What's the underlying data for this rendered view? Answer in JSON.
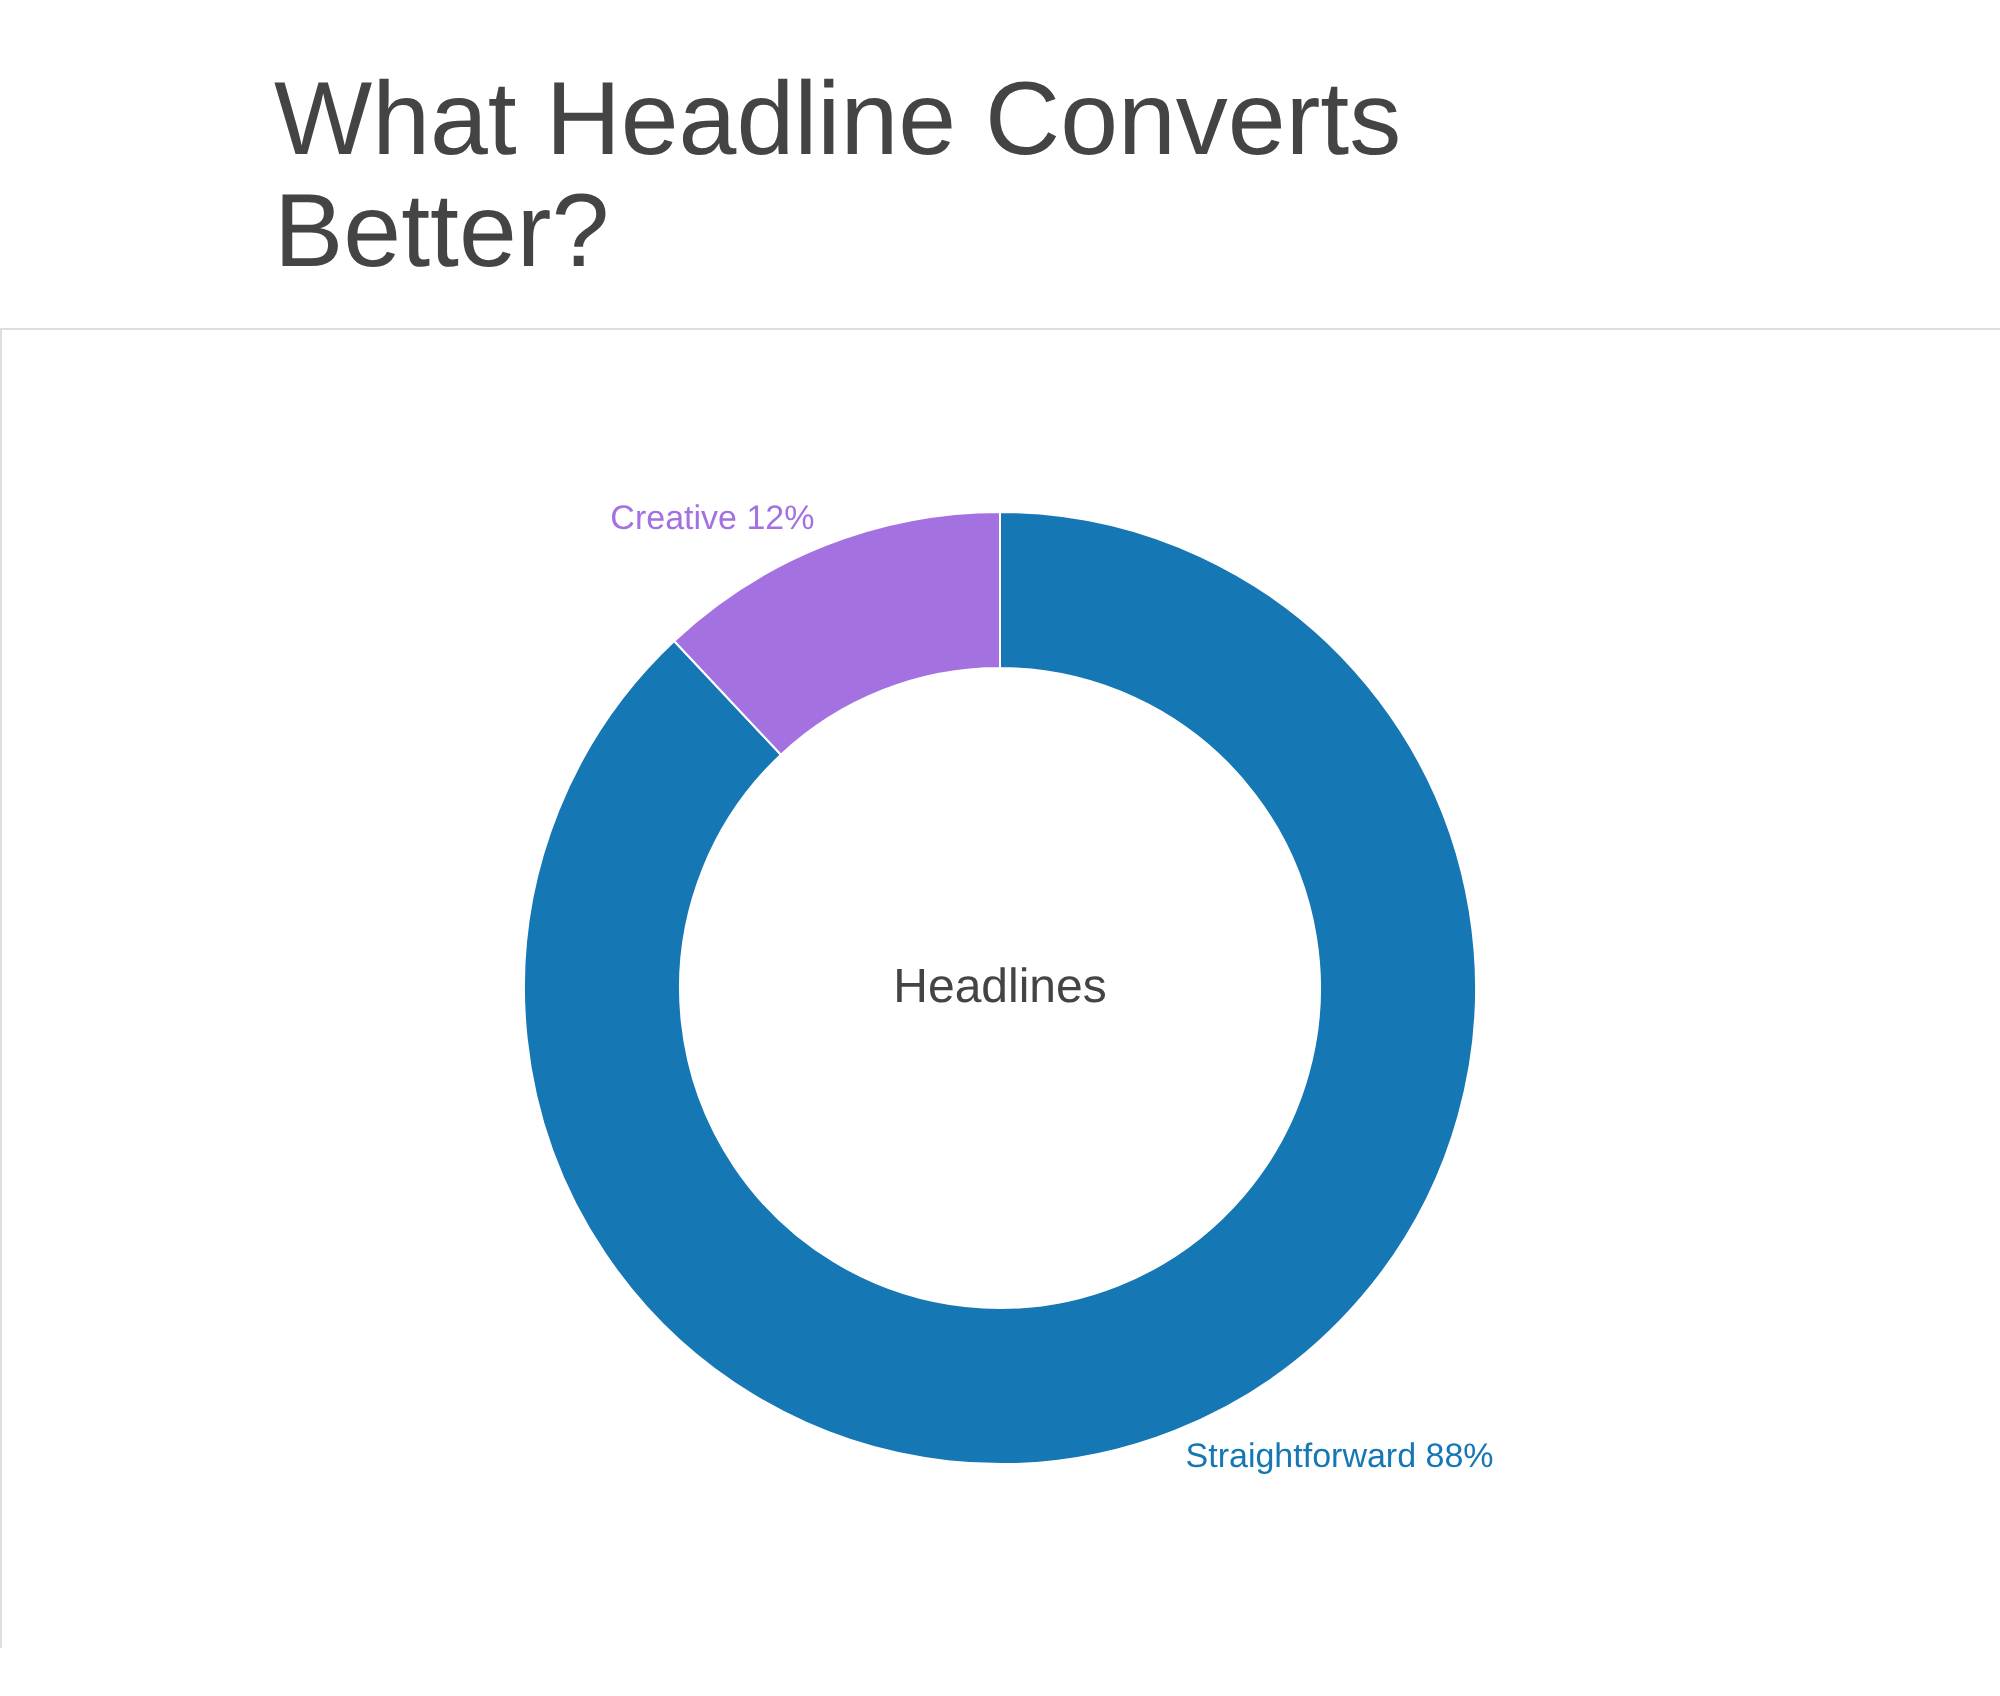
{
  "chart_data": {
    "type": "donut",
    "title": "What Headline Converts Better?",
    "categories": [
      "Straightforward",
      "Creative"
    ],
    "values": [
      88,
      12
    ],
    "colors": [
      "#1677b5",
      "#a472e0"
    ],
    "value_labels": [
      "88%",
      "12%"
    ],
    "annotations": [
      "Headlines"
    ],
    "legend": false
  }
}
